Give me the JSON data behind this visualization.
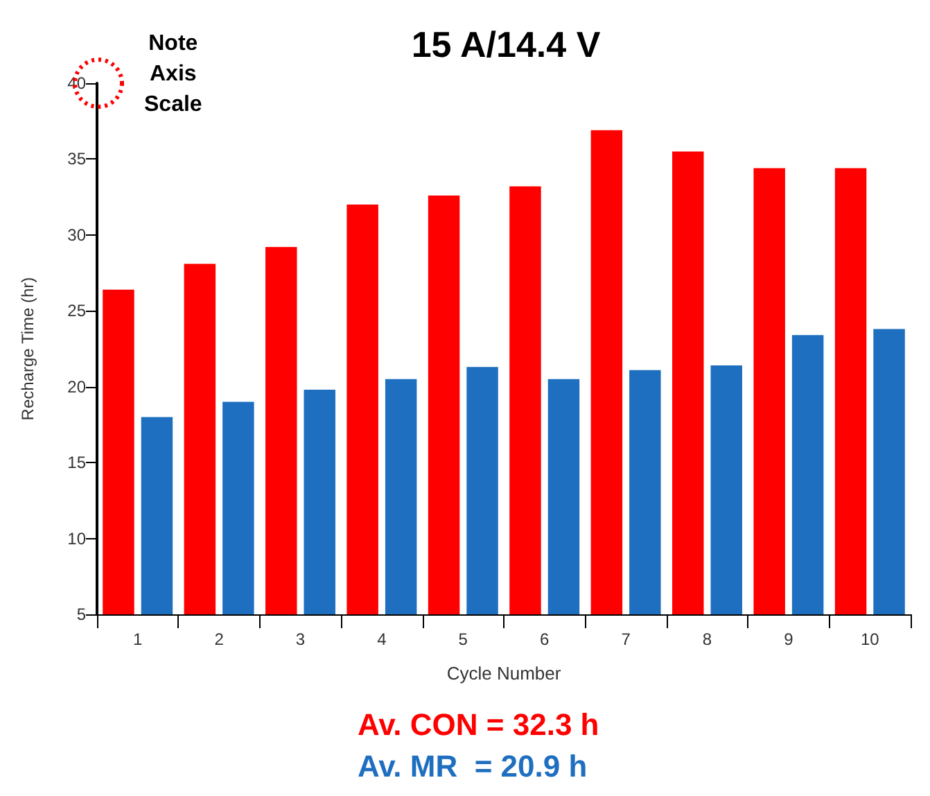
{
  "chart_data": {
    "type": "bar",
    "title": "15 A/14.4 V",
    "xlabel": "Cycle Number",
    "ylabel": "Recharge Time (hr)",
    "categories": [
      "1",
      "2",
      "3",
      "4",
      "5",
      "6",
      "7",
      "8",
      "9",
      "10"
    ],
    "series": [
      {
        "color": "#ff0000",
        "values": [
          26.4,
          28.1,
          29.2,
          32.0,
          32.6,
          33.2,
          36.9,
          35.5,
          34.4,
          34.4
        ]
      },
      {
        "color": "#1f6fc0",
        "values": [
          18.0,
          19.0,
          19.8,
          20.5,
          21.3,
          20.5,
          21.1,
          21.4,
          23.4,
          23.8
        ]
      }
    ],
    "ylim": [
      5,
      40
    ],
    "yticks": [
      5,
      10,
      15,
      20,
      25,
      30,
      35,
      40
    ],
    "grid": false,
    "annotations": [
      "Note\nAxis\nScale",
      "Av. CON = 32.3 h",
      "Av. MR  = 20.9 h"
    ]
  }
}
